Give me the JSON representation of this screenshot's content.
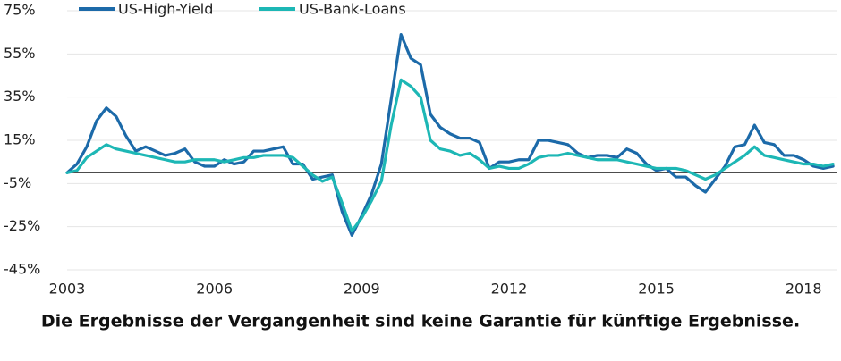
{
  "chart_data": {
    "type": "line",
    "x": [
      2003.0,
      2003.2,
      2003.4,
      2003.6,
      2003.8,
      2004.0,
      2004.2,
      2004.4,
      2004.6,
      2004.8,
      2005.0,
      2005.2,
      2005.4,
      2005.6,
      2005.8,
      2006.0,
      2006.2,
      2006.4,
      2006.6,
      2006.8,
      2007.0,
      2007.2,
      2007.4,
      2007.6,
      2007.8,
      2008.0,
      2008.2,
      2008.4,
      2008.6,
      2008.8,
      2009.0,
      2009.2,
      2009.4,
      2009.6,
      2009.8,
      2010.0,
      2010.2,
      2010.4,
      2010.6,
      2010.8,
      2011.0,
      2011.2,
      2011.4,
      2011.6,
      2011.8,
      2012.0,
      2012.2,
      2012.4,
      2012.6,
      2012.8,
      2013.0,
      2013.2,
      2013.4,
      2013.6,
      2013.8,
      2014.0,
      2014.2,
      2014.4,
      2014.6,
      2014.8,
      2015.0,
      2015.2,
      2015.4,
      2015.6,
      2015.8,
      2016.0,
      2016.2,
      2016.4,
      2016.6,
      2016.8,
      2017.0,
      2017.2,
      2017.4,
      2017.6,
      2017.8,
      2018.0,
      2018.2,
      2018.4,
      2018.6
    ],
    "series": [
      {
        "name": "US-High-Yield",
        "color": "#1c6aa9",
        "values": [
          0,
          4,
          12,
          24,
          30,
          26,
          17,
          10,
          12,
          10,
          8,
          9,
          11,
          5,
          3,
          3,
          6,
          4,
          5,
          10,
          10,
          11,
          12,
          4,
          4,
          -3,
          -2,
          -1,
          -18,
          -29,
          -20,
          -10,
          4,
          34,
          64,
          53,
          50,
          27,
          21,
          18,
          16,
          16,
          14,
          2,
          5,
          5,
          6,
          6,
          15,
          15,
          14,
          13,
          9,
          7,
          8,
          8,
          7,
          11,
          9,
          4,
          1,
          2,
          -2,
          -2,
          -6,
          -9,
          -3,
          3,
          12,
          13,
          22,
          14,
          13,
          8,
          8,
          6,
          3,
          2,
          3
        ]
      },
      {
        "name": "US-Bank-Loans",
        "color": "#1db7b5",
        "values": [
          0,
          1,
          7,
          10,
          13,
          11,
          10,
          9,
          8,
          7,
          6,
          5,
          5,
          6,
          6,
          6,
          5,
          6,
          7,
          7,
          8,
          8,
          8,
          7,
          3,
          -1,
          -4,
          -2,
          -14,
          -27,
          -21,
          -13,
          -4,
          22,
          43,
          40,
          35,
          15,
          11,
          10,
          8,
          9,
          6,
          2,
          3,
          2,
          2,
          4,
          7,
          8,
          8,
          9,
          8,
          7,
          6,
          6,
          6,
          5,
          4,
          3,
          2,
          2,
          2,
          1,
          -1,
          -3,
          -1,
          2,
          5,
          8,
          12,
          8,
          7,
          6,
          5,
          4,
          4,
          3,
          4
        ]
      }
    ],
    "xlim": [
      2003,
      2018.67
    ],
    "xticks": [
      2003,
      2006,
      2009,
      2012,
      2015,
      2018
    ],
    "ylim": [
      -45,
      75
    ],
    "yticks": [
      {
        "value": -45,
        "label": "-45%"
      },
      {
        "value": -25,
        "label": "-25%"
      },
      {
        "value": -5,
        "label": "-5%"
      },
      {
        "value": 15,
        "label": "15%"
      },
      {
        "value": 35,
        "label": "35%"
      },
      {
        "value": 55,
        "label": "55%"
      },
      {
        "value": 75,
        "label": "75%"
      }
    ],
    "grid": true,
    "legend": "top-left",
    "footnote": "Die Ergebnisse der Vergangenheit sind keine Garantie für künftige Ergebnisse."
  }
}
